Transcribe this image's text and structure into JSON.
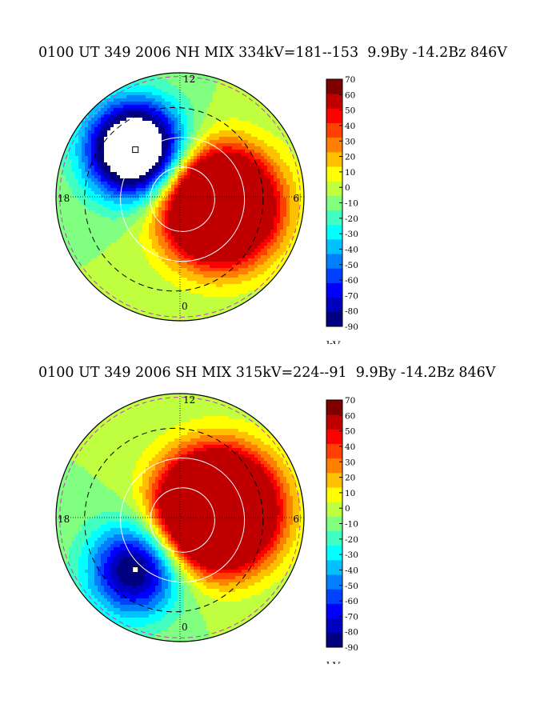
{
  "chart_data": [
    {
      "type": "heatmap",
      "title": "0100 UT 349 2006 NH MIX 334kV=181--153  9.9By -14.2Bz 846V",
      "hemisphere": "NH",
      "clock_labels": [
        "12",
        "18",
        "6",
        "0"
      ],
      "colorbar": {
        "ticks": [
          70,
          60,
          50,
          40,
          30,
          20,
          10,
          0,
          -10,
          -20,
          -30,
          -40,
          -50,
          -60,
          -70,
          -80,
          -90
        ],
        "tick_labels": [
          "70",
          "60",
          "50",
          "40",
          "30",
          "20",
          "10",
          "0",
          "-10",
          "-20",
          "-30",
          "-40",
          "-50",
          "-60",
          "-70",
          "-80",
          "-90"
        ],
        "range": [
          -90,
          70
        ],
        "unit": "kV"
      },
      "potential": {
        "max_kV": 181,
        "min_kV": -153,
        "total_kV": 334,
        "positive_cell_center": [
          0.32,
          -0.08
        ],
        "negative_cell_center": [
          -0.36,
          0.38
        ]
      }
    },
    {
      "type": "heatmap",
      "title": "0100 UT 349 2006 SH MIX 315kV=224--91  9.9By -14.2Bz 846V",
      "hemisphere": "SH",
      "clock_labels": [
        "12",
        "18",
        "6",
        "0"
      ],
      "colorbar": {
        "ticks": [
          70,
          60,
          50,
          40,
          30,
          20,
          10,
          0,
          -10,
          -20,
          -30,
          -40,
          -50,
          -60,
          -70,
          -80,
          -90
        ],
        "tick_labels": [
          "70",
          "60",
          "50",
          "40",
          "30",
          "20",
          "10",
          "0",
          "-10",
          "-20",
          "-30",
          "-40",
          "-50",
          "-60",
          "-70",
          "-80",
          "-90"
        ],
        "range": [
          -90,
          70
        ],
        "unit": "kV"
      },
      "potential": {
        "max_kV": 224,
        "min_kV": -91,
        "total_kV": 315,
        "positive_cell_center": [
          0.3,
          0.06
        ],
        "negative_cell_center": [
          -0.36,
          -0.42
        ]
      }
    }
  ],
  "colormap": [
    "#000080",
    "#0000c0",
    "#0000ff",
    "#0040ff",
    "#0080ff",
    "#00c0ff",
    "#00ffff",
    "#40ffc0",
    "#80ff80",
    "#c0ff40",
    "#ffff00",
    "#ffc000",
    "#ff8000",
    "#ff4000",
    "#ff0000",
    "#c00000",
    "#800000"
  ]
}
